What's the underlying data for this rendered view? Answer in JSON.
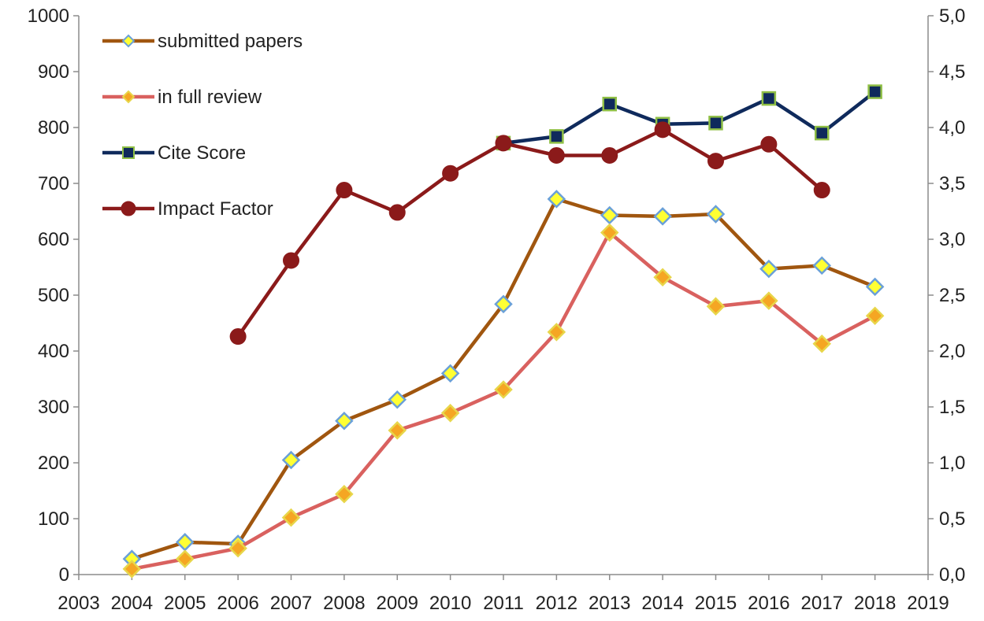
{
  "chart_data": {
    "type": "line",
    "title": "",
    "xlabel": "",
    "ylabel": "",
    "y2label": "",
    "x_ticks": [
      "2003",
      "2004",
      "2005",
      "2006",
      "2007",
      "2008",
      "2009",
      "2010",
      "2011",
      "2012",
      "2013",
      "2014",
      "2015",
      "2016",
      "2017",
      "2018",
      "2019"
    ],
    "xlim": [
      2003,
      2019
    ],
    "ylim": [
      0,
      1000
    ],
    "y_ticks": [
      "0",
      "100",
      "200",
      "300",
      "400",
      "500",
      "600",
      "700",
      "800",
      "900",
      "1000"
    ],
    "y2lim": [
      0,
      5
    ],
    "y2_ticks": [
      "0,0",
      "0,5",
      "1,0",
      "1,5",
      "2,0",
      "2,5",
      "3,0",
      "3,5",
      "4,0",
      "4,5",
      "5,0"
    ],
    "grid": false,
    "legend_position": "top-left",
    "series": [
      {
        "name": "submitted papers",
        "axis": "left",
        "marker": "diamond",
        "color": "#a0560f",
        "marker_fill": "#ffff33",
        "marker_stroke": "#6aa0d8",
        "x": [
          2004,
          2005,
          2006,
          2007,
          2008,
          2009,
          2010,
          2011,
          2012,
          2013,
          2014,
          2015,
          2016,
          2017,
          2018
        ],
        "values": [
          28,
          58,
          55,
          205,
          275,
          313,
          360,
          484,
          672,
          643,
          641,
          645,
          547,
          553,
          515
        ]
      },
      {
        "name": "in full review",
        "axis": "left",
        "marker": "diamond",
        "color": "#d9615f",
        "marker_fill": "#f5a623",
        "marker_stroke": "#e8d64a",
        "x": [
          2004,
          2005,
          2006,
          2007,
          2008,
          2009,
          2010,
          2011,
          2012,
          2013,
          2014,
          2015,
          2016,
          2017,
          2018
        ],
        "values": [
          10,
          28,
          47,
          102,
          144,
          258,
          289,
          331,
          434,
          612,
          532,
          480,
          490,
          413,
          463
        ]
      },
      {
        "name": "Cite Score",
        "axis": "right",
        "marker": "square",
        "color": "#0f2a5c",
        "marker_fill": "#0f2a5c",
        "marker_stroke": "#8fbf45",
        "x": [
          2011,
          2012,
          2013,
          2014,
          2015,
          2016,
          2017,
          2018
        ],
        "values": [
          3.86,
          3.92,
          4.21,
          4.03,
          4.04,
          4.26,
          3.95,
          4.32
        ]
      },
      {
        "name": "Impact Factor",
        "axis": "right",
        "marker": "circle",
        "color": "#8b1a1a",
        "marker_fill": "#8b1a1a",
        "marker_stroke": "#8b1a1a",
        "x": [
          2006,
          2007,
          2008,
          2009,
          2010,
          2011,
          2012,
          2013,
          2014,
          2015,
          2016,
          2017
        ],
        "values": [
          2.13,
          2.81,
          3.44,
          3.24,
          3.59,
          3.86,
          3.75,
          3.75,
          3.98,
          3.7,
          3.85,
          3.44
        ]
      }
    ]
  }
}
